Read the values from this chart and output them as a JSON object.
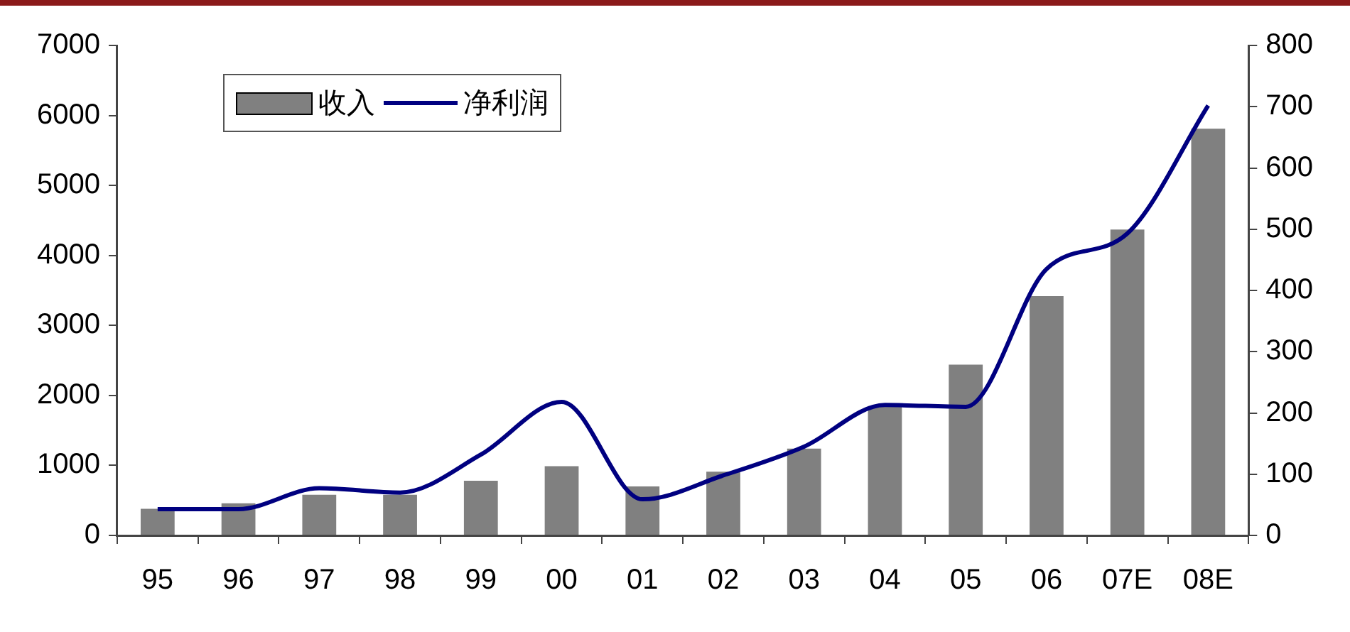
{
  "chart_data": {
    "type": "bar",
    "categories": [
      "95",
      "96",
      "97",
      "98",
      "99",
      "00",
      "01",
      "02",
      "03",
      "04",
      "05",
      "06",
      "07E",
      "08E"
    ],
    "series": [
      {
        "name": "收入",
        "color": "#808080",
        "values": [
          380,
          460,
          580,
          580,
          780,
          990,
          700,
          910,
          1240,
          1850,
          2440,
          3420,
          4370,
          5810
        ]
      },
      {
        "name": "净利润",
        "type": "line",
        "axis": "y2",
        "color": "#000080",
        "values": [
          43,
          43,
          77,
          70,
          132,
          218,
          59,
          98,
          145,
          213,
          210,
          435,
          493,
          702
        ]
      }
    ],
    "ylim": [
      0,
      7000
    ],
    "yticks": [
      0,
      1000,
      2000,
      3000,
      4000,
      5000,
      6000,
      7000
    ],
    "y2lim": [
      0,
      800
    ],
    "y2ticks": [
      0,
      100,
      200,
      300,
      400,
      500,
      600,
      700,
      800
    ],
    "grid": false,
    "legend": "top left",
    "marker": "none",
    "line_style": "solid"
  }
}
